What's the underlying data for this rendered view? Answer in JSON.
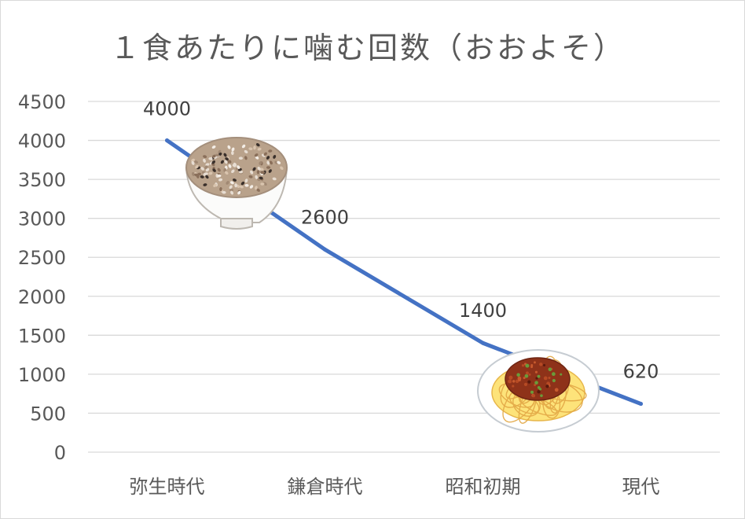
{
  "chart_data": {
    "type": "line",
    "title": "１食あたりに噛む回数（おおよそ）",
    "categories": [
      "弥生時代",
      "鎌倉時代",
      "昭和初期",
      "現代"
    ],
    "series": [
      {
        "values": [
          4000,
          2600,
          1400,
          620
        ],
        "color": "#4472c4"
      }
    ],
    "data_labels": [
      "4000",
      "2600",
      "1400",
      "620"
    ],
    "yticks": [
      0,
      500,
      1000,
      1500,
      2000,
      2500,
      3000,
      3500,
      4000,
      4500
    ],
    "ylim": [
      0,
      4500
    ],
    "xlabel": "",
    "ylabel": "",
    "grid": true,
    "legend": "none",
    "colors": {
      "line": "#4472c4",
      "grid": "#d9d9d9",
      "text": "#595959",
      "title": "#595959"
    },
    "illustrations": [
      "rice-bowl-icon",
      "spaghetti-plate-icon"
    ]
  }
}
